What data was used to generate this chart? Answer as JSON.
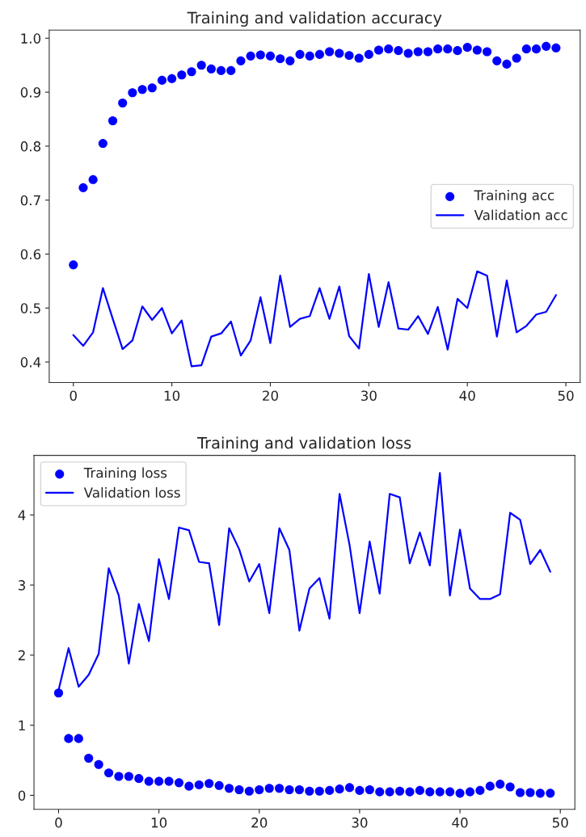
{
  "chart_data": [
    {
      "type": "scatter",
      "title": "Training and validation accuracy",
      "x": [
        0,
        1,
        2,
        3,
        4,
        5,
        6,
        7,
        8,
        9,
        10,
        11,
        12,
        13,
        14,
        15,
        16,
        17,
        18,
        19,
        20,
        21,
        22,
        23,
        24,
        25,
        26,
        27,
        28,
        29,
        30,
        31,
        32,
        33,
        34,
        35,
        36,
        37,
        38,
        39,
        40,
        41,
        42,
        43,
        44,
        45,
        46,
        47,
        48,
        49
      ],
      "series": [
        {
          "name": "Training acc",
          "marker": "circle",
          "color": "#0000ff",
          "values": [
            0.58,
            0.723,
            0.738,
            0.805,
            0.847,
            0.88,
            0.899,
            0.905,
            0.908,
            0.922,
            0.925,
            0.932,
            0.938,
            0.95,
            0.943,
            0.94,
            0.94,
            0.958,
            0.967,
            0.969,
            0.967,
            0.962,
            0.958,
            0.97,
            0.967,
            0.97,
            0.975,
            0.972,
            0.968,
            0.963,
            0.97,
            0.978,
            0.98,
            0.977,
            0.972,
            0.975,
            0.975,
            0.98,
            0.98,
            0.977,
            0.983,
            0.978,
            0.975,
            0.958,
            0.952,
            0.963,
            0.98,
            0.98,
            0.985,
            0.982
          ]
        },
        {
          "name": "Validation acc",
          "type": "line",
          "line_style": "solid",
          "color": "#0000ff",
          "values": [
            0.45,
            0.43,
            0.455,
            0.537,
            0.48,
            0.424,
            0.44,
            0.503,
            0.478,
            0.5,
            0.453,
            0.477,
            0.392,
            0.394,
            0.447,
            0.453,
            0.475,
            0.412,
            0.44,
            0.52,
            0.435,
            0.56,
            0.465,
            0.48,
            0.485,
            0.537,
            0.48,
            0.54,
            0.448,
            0.425,
            0.563,
            0.465,
            0.548,
            0.462,
            0.46,
            0.485,
            0.452,
            0.502,
            0.423,
            0.517,
            0.5,
            0.568,
            0.56,
            0.447,
            0.551,
            0.455,
            0.467,
            0.488,
            0.493,
            0.524
          ]
        }
      ],
      "xlim": [
        -2.45,
        51.45
      ],
      "xticks": [
        0,
        10,
        20,
        30,
        40,
        50
      ],
      "ylim": [
        0.362,
        1.015
      ],
      "yticks": [
        0.4,
        0.5,
        0.6,
        0.7,
        0.8,
        0.9,
        {
          "value": 1.0,
          "label": "1.0"
        }
      ],
      "legend": "right",
      "grid": false
    },
    {
      "type": "scatter",
      "title": "Training and validation loss",
      "x": [
        0,
        1,
        2,
        3,
        4,
        5,
        6,
        7,
        8,
        9,
        10,
        11,
        12,
        13,
        14,
        15,
        16,
        17,
        18,
        19,
        20,
        21,
        22,
        23,
        24,
        25,
        26,
        27,
        28,
        29,
        30,
        31,
        32,
        33,
        34,
        35,
        36,
        37,
        38,
        39,
        40,
        41,
        42,
        43,
        44,
        45,
        46,
        47,
        48,
        49
      ],
      "series": [
        {
          "name": "Training loss",
          "marker": "circle",
          "color": "#0000ff",
          "values": [
            1.46,
            0.81,
            0.81,
            0.53,
            0.44,
            0.32,
            0.27,
            0.27,
            0.24,
            0.2,
            0.2,
            0.2,
            0.18,
            0.13,
            0.15,
            0.17,
            0.14,
            0.1,
            0.08,
            0.06,
            0.08,
            0.1,
            0.1,
            0.08,
            0.08,
            0.06,
            0.06,
            0.07,
            0.09,
            0.11,
            0.07,
            0.08,
            0.05,
            0.05,
            0.06,
            0.05,
            0.07,
            0.05,
            0.05,
            0.05,
            0.03,
            0.05,
            0.07,
            0.13,
            0.16,
            0.12,
            0.04,
            0.04,
            0.03,
            0.03
          ]
        },
        {
          "name": "Validation loss",
          "type": "line",
          "line_style": "solid",
          "color": "#0000ff",
          "values": [
            1.5,
            2.1,
            1.55,
            1.72,
            2.02,
            3.24,
            2.85,
            1.88,
            2.73,
            2.2,
            3.37,
            2.8,
            3.82,
            3.78,
            3.33,
            3.31,
            2.43,
            3.81,
            3.51,
            3.05,
            3.3,
            2.6,
            3.81,
            3.5,
            2.35,
            2.95,
            3.1,
            2.52,
            4.3,
            3.57,
            2.6,
            3.62,
            2.88,
            4.3,
            4.25,
            3.31,
            3.75,
            3.28,
            4.6,
            2.85,
            3.79,
            2.95,
            2.8,
            2.8,
            2.87,
            4.03,
            3.93,
            3.3,
            3.5,
            3.19
          ]
        }
      ],
      "xlim": [
        -2.45,
        51.45
      ],
      "xticks": [
        0,
        10,
        20,
        30,
        40,
        50
      ],
      "ylim": [
        -0.2,
        4.85
      ],
      "yticks": [
        0,
        1,
        2,
        3,
        4
      ],
      "legend": "top left",
      "grid": false
    }
  ]
}
